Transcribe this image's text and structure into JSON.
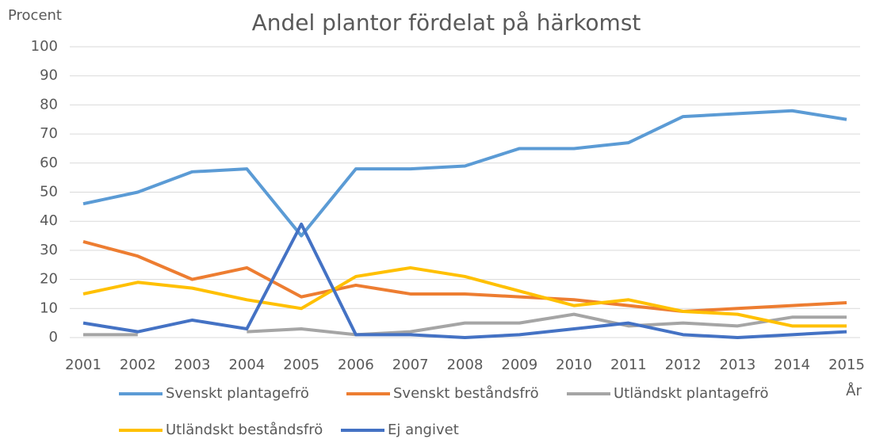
{
  "chart_data": {
    "type": "line",
    "title": "Andel plantor fördelat på härkomst",
    "y_label": "Procent",
    "x_label": "År",
    "categories": [
      "2001",
      "2002",
      "2003",
      "2004",
      "2005",
      "2006",
      "2007",
      "2008",
      "2009",
      "2010",
      "2011",
      "2012",
      "2013",
      "2014",
      "2015"
    ],
    "series": [
      {
        "name": "Svenskt plantagefrö",
        "color": "#5b9bd5",
        "values": [
          46,
          50,
          57,
          58,
          35,
          58,
          58,
          59,
          65,
          65,
          67,
          76,
          77,
          78,
          75
        ]
      },
      {
        "name": "Svenskt beståndsfrö",
        "color": "#ed7d31",
        "values": [
          33,
          28,
          20,
          24,
          14,
          18,
          15,
          15,
          14,
          13,
          11,
          9,
          10,
          11,
          12
        ]
      },
      {
        "name": "Utländskt plantagefrö",
        "color": "#a5a5a5",
        "values": [
          1,
          1,
          null,
          2,
          3,
          1,
          2,
          5,
          5,
          8,
          4,
          5,
          4,
          7,
          7
        ]
      },
      {
        "name": "Utländskt beståndsfrö",
        "color": "#ffc000",
        "values": [
          15,
          19,
          17,
          13,
          10,
          21,
          24,
          21,
          16,
          11,
          13,
          9,
          8,
          4,
          4
        ]
      },
      {
        "name": "Ej angivet",
        "color": "#4472c4",
        "values": [
          5,
          2,
          6,
          3,
          39,
          1,
          1,
          0,
          1,
          3,
          5,
          1,
          0,
          1,
          2
        ]
      }
    ],
    "ylim": [
      0,
      100
    ],
    "yticks": [
      0,
      10,
      20,
      30,
      40,
      50,
      60,
      70,
      80,
      90,
      100
    ],
    "grid": true,
    "legend": "bottom"
  }
}
